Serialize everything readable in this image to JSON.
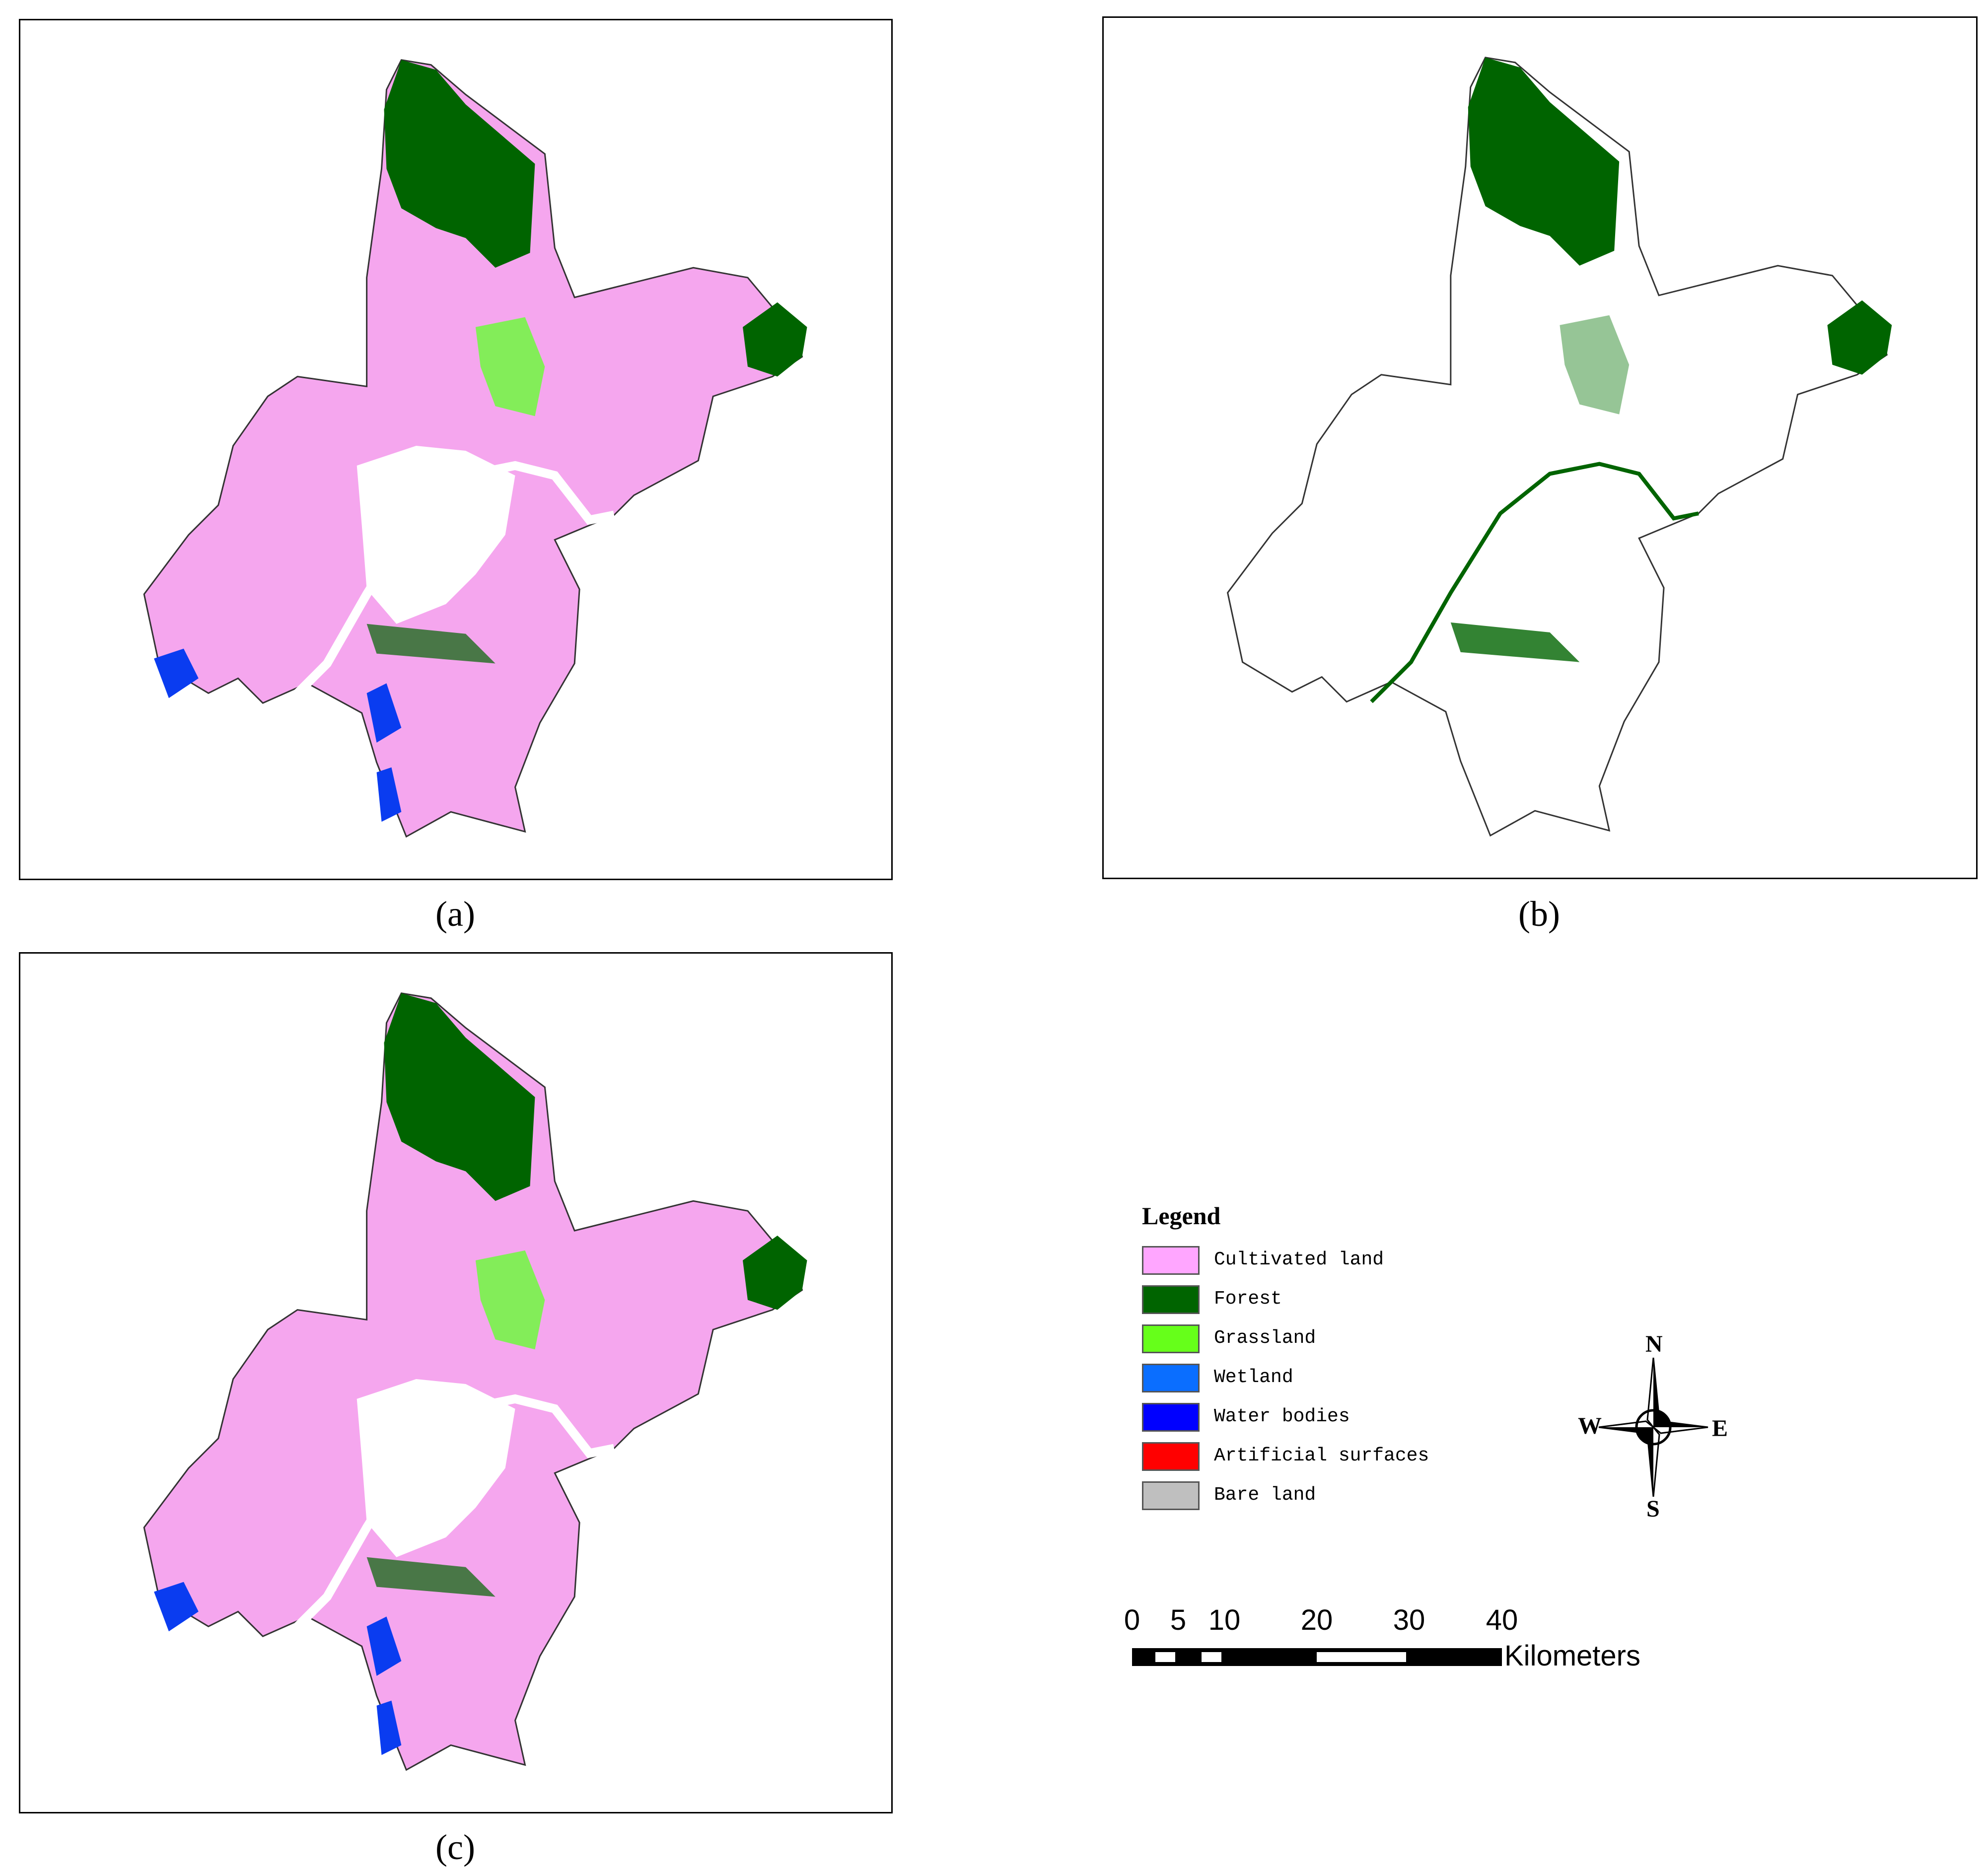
{
  "panels": [
    {
      "caption": "(a)",
      "fill": "#f5a6ee",
      "green_fill": "#66ff33",
      "forest": "#006400",
      "water": "#0a3cf0"
    },
    {
      "caption": "(b)",
      "fill": "#ffffff",
      "green_fill": "#2e8b2e",
      "forest": "#006400",
      "water": "#006400"
    },
    {
      "caption": "(c)",
      "fill": "#f5a6ee",
      "green_fill": "#66ff33",
      "forest": "#006400",
      "water": "#0a3cf0"
    }
  ],
  "legend": {
    "title": "Legend",
    "items": [
      {
        "label": "Cultivated land",
        "color": "#ffa6ff"
      },
      {
        "label": "Forest",
        "color": "#006400"
      },
      {
        "label": "Grassland",
        "color": "#66ff1a"
      },
      {
        "label": "Wetland",
        "color": "#0a6eff"
      },
      {
        "label": "Water bodies",
        "color": "#0000ff"
      },
      {
        "label": "Artificial surfaces",
        "color": "#ff0000"
      },
      {
        "label": "Bare land",
        "color": "#bfbfbf"
      }
    ]
  },
  "compass": {
    "n": "N",
    "s": "S",
    "e": "E",
    "w": "W"
  },
  "scale_bar": {
    "ticks": [
      "0",
      "5",
      "10",
      "20",
      "30",
      "40"
    ],
    "unit": "Kilometers"
  }
}
